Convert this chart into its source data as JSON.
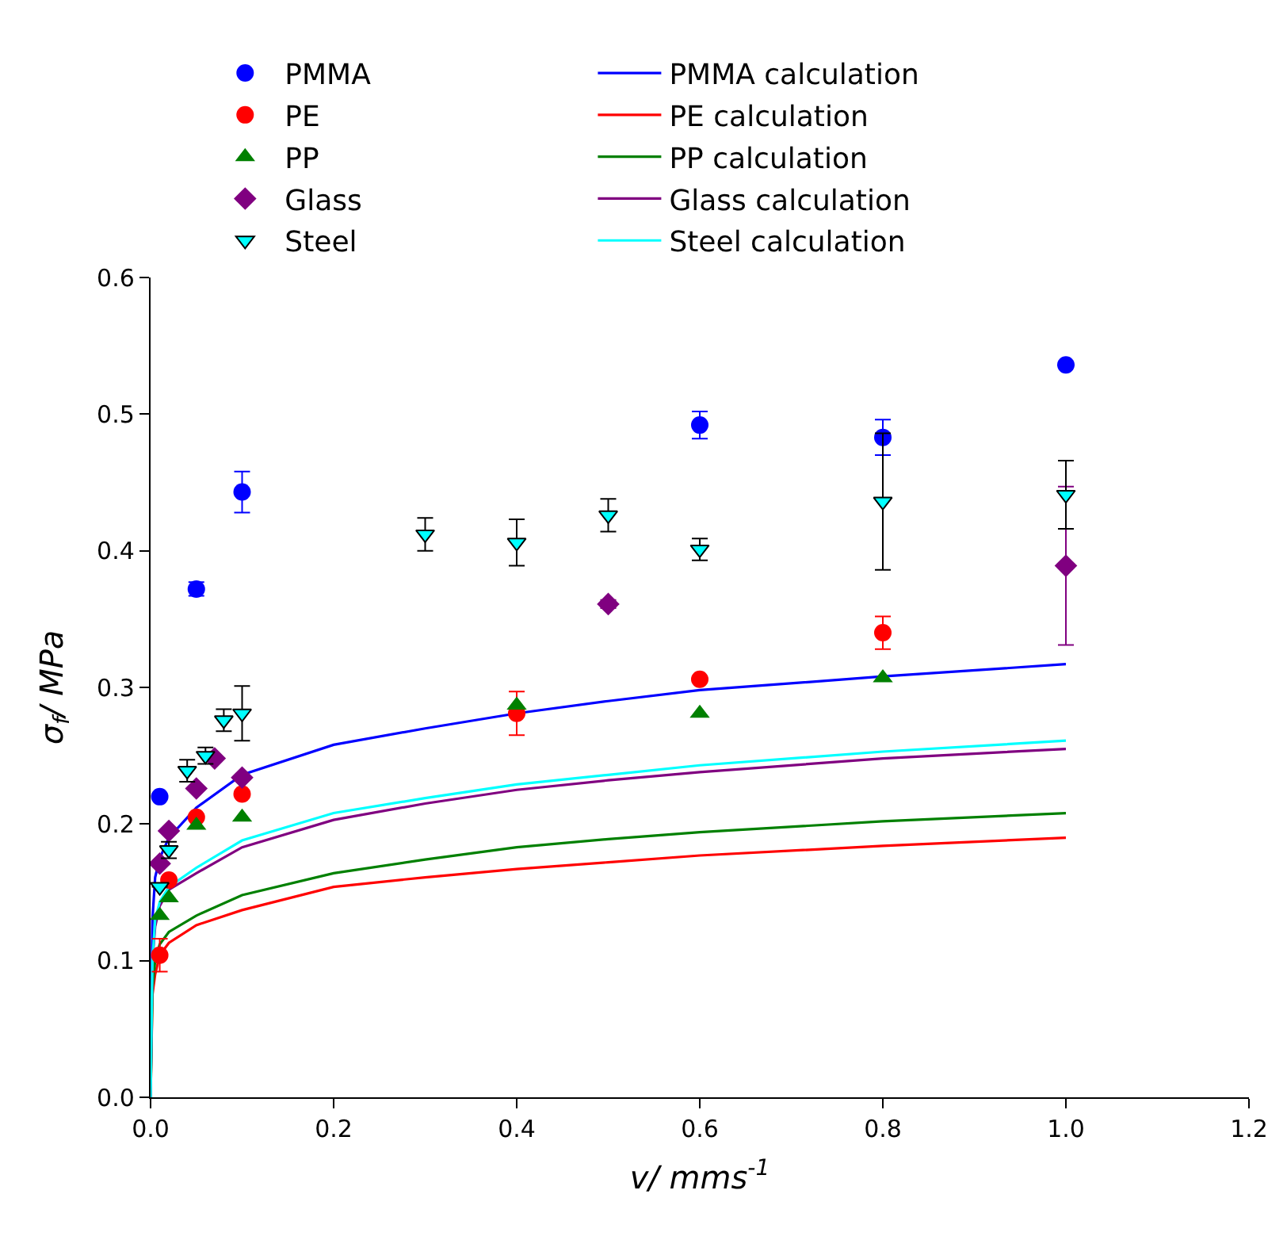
{
  "chart_data": {
    "type": "scatter",
    "xlabel": "v/ mms$^{-1}$",
    "ylabel": "σ$_{f}$/ MPa",
    "xlim": [
      0,
      1.2
    ],
    "xticks": [
      {
        "value": 0,
        "label": "0.0"
      },
      {
        "value": 0.2,
        "label": "0.2"
      },
      {
        "value": 0.4,
        "label": "0.4"
      },
      {
        "value": 0.6,
        "label": "0.6"
      },
      {
        "value": 0.8,
        "label": "0.8"
      },
      {
        "value": 1.0,
        "label": "1.0"
      },
      {
        "value": 1.2,
        "label": "1.2"
      }
    ],
    "ylim": [
      0,
      0.6
    ],
    "yticks": [
      {
        "value": 0,
        "label": "0.0"
      },
      {
        "value": 0.1,
        "label": "0.1"
      },
      {
        "value": 0.2,
        "label": "0.2"
      },
      {
        "value": 0.3,
        "label": "0.3"
      },
      {
        "value": 0.4,
        "label": "0.4"
      },
      {
        "value": 0.5,
        "label": "0.5"
      },
      {
        "value": 0.6,
        "label": "0.6"
      }
    ],
    "legend": "top",
    "series": [
      {
        "name": "PMMA",
        "marker": "circle",
        "color": "#0000ff",
        "x": [
          0.01,
          0.05,
          0.1,
          0.6,
          0.8,
          1.0
        ],
        "values": [
          0.22,
          0.372,
          0.443,
          0.492,
          0.483,
          0.536
        ],
        "errors": [
          null,
          0.005,
          0.015,
          0.01,
          0.013,
          null
        ]
      },
      {
        "name": "PMMA calculation",
        "type": "line",
        "marker": "none",
        "color": "#0000ff",
        "x": [
          0,
          0.002,
          0.005,
          0.01,
          0.02,
          0.05,
          0.1,
          0.2,
          0.3,
          0.4,
          0.5,
          0.6,
          0.8,
          1.0
        ],
        "values": [
          0,
          0.13,
          0.161,
          0.175,
          0.19,
          0.212,
          0.236,
          0.258,
          0.27,
          0.281,
          0.29,
          0.298,
          0.308,
          0.317
        ]
      },
      {
        "name": "PE",
        "marker": "circle",
        "color": "#ff0000",
        "x": [
          0.01,
          0.02,
          0.05,
          0.1,
          0.4,
          0.6,
          0.8
        ],
        "values": [
          0.104,
          0.159,
          0.205,
          0.222,
          0.281,
          0.306,
          0.34
        ],
        "errors": [
          0.012,
          null,
          null,
          null,
          0.016,
          null,
          0.012
        ]
      },
      {
        "name": "PE calculation",
        "type": "line",
        "marker": "none",
        "color": "#ff0000",
        "x": [
          0,
          0.002,
          0.005,
          0.01,
          0.02,
          0.05,
          0.1,
          0.2,
          0.3,
          0.4,
          0.5,
          0.6,
          0.8,
          1.0
        ],
        "values": [
          0,
          0.075,
          0.09,
          0.104,
          0.113,
          0.126,
          0.137,
          0.154,
          0.161,
          0.167,
          0.172,
          0.177,
          0.184,
          0.19
        ]
      },
      {
        "name": "PP",
        "marker": "triangle",
        "color": "#008000",
        "x": [
          0.01,
          0.02,
          0.05,
          0.1,
          0.4,
          0.6,
          0.8
        ],
        "values": [
          0.133,
          0.146,
          0.199,
          0.205,
          0.287,
          0.281,
          0.307
        ]
      },
      {
        "name": "PP calculation",
        "type": "line",
        "marker": "none",
        "color": "#008000",
        "x": [
          0,
          0.002,
          0.005,
          0.01,
          0.02,
          0.05,
          0.1,
          0.2,
          0.3,
          0.4,
          0.5,
          0.6,
          0.8,
          1.0
        ],
        "values": [
          0,
          0.08,
          0.1,
          0.112,
          0.121,
          0.133,
          0.148,
          0.164,
          0.174,
          0.183,
          0.189,
          0.194,
          0.202,
          0.208
        ]
      },
      {
        "name": "Glass",
        "marker": "diamond",
        "color": "#800080",
        "x": [
          0.01,
          0.02,
          0.05,
          0.07,
          0.1,
          0.5,
          1.0
        ],
        "values": [
          0.171,
          0.195,
          0.226,
          0.248,
          0.234,
          0.361,
          0.389
        ],
        "errors": [
          null,
          null,
          null,
          null,
          null,
          0.003,
          0.058
        ]
      },
      {
        "name": "Glass calculation",
        "type": "line",
        "marker": "none",
        "color": "#800080",
        "x": [
          0,
          0.002,
          0.005,
          0.01,
          0.02,
          0.05,
          0.1,
          0.2,
          0.3,
          0.4,
          0.5,
          0.6,
          0.8,
          1.0
        ],
        "values": [
          0,
          0.1,
          0.125,
          0.14,
          0.152,
          0.164,
          0.183,
          0.203,
          0.215,
          0.225,
          0.232,
          0.238,
          0.248,
          0.255
        ]
      },
      {
        "name": "Steel",
        "marker": "triangle-down",
        "color": "#00ffff",
        "x": [
          0.01,
          0.02,
          0.04,
          0.06,
          0.08,
          0.1,
          0.3,
          0.4,
          0.5,
          0.6,
          0.8,
          1.0
        ],
        "values": [
          0.154,
          0.181,
          0.239,
          0.25,
          0.276,
          0.281,
          0.412,
          0.406,
          0.426,
          0.401,
          0.436,
          0.441
        ],
        "errors": [
          null,
          0.006,
          0.008,
          0.006,
          0.008,
          0.02,
          0.012,
          0.017,
          0.012,
          0.008,
          0.05,
          0.025
        ]
      },
      {
        "name": "Steel calculation",
        "type": "line",
        "marker": "none",
        "color": "#00ffff",
        "x": [
          0,
          0.002,
          0.005,
          0.01,
          0.02,
          0.05,
          0.1,
          0.2,
          0.3,
          0.4,
          0.5,
          0.6,
          0.8,
          1.0
        ],
        "values": [
          0,
          0.1,
          0.13,
          0.143,
          0.154,
          0.168,
          0.188,
          0.208,
          0.219,
          0.229,
          0.236,
          0.243,
          0.253,
          0.261
        ]
      }
    ]
  }
}
